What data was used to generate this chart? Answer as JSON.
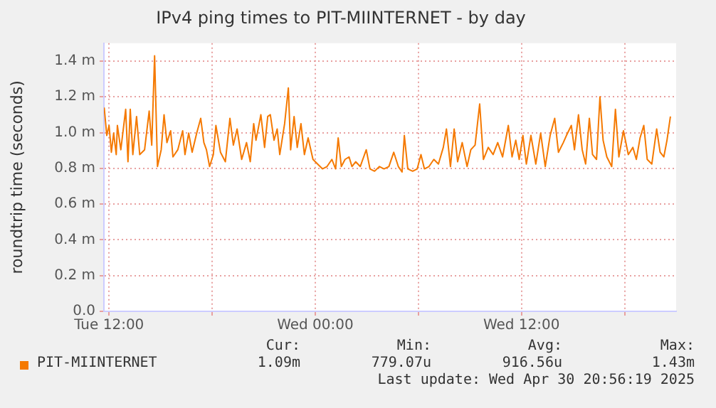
{
  "chart_data": {
    "type": "line",
    "title": "IPv4 ping times to PIT-MIINTERNET - by day",
    "ylabel": "roundtrip time (seconds)",
    "x": [
      "2025-04-29T11:43",
      "2025-04-29T11:52",
      "2025-04-29T12:00",
      "2025-04-29T12:08",
      "2025-04-29T12:16",
      "2025-04-29T12:25",
      "2025-04-29T12:29",
      "2025-04-29T12:41",
      "2025-04-29T12:58",
      "2025-04-29T13:06",
      "2025-04-29T13:14",
      "2025-04-29T13:23",
      "2025-04-29T13:36",
      "2025-04-29T13:47",
      "2025-04-29T14:04",
      "2025-04-29T14:20",
      "2025-04-29T14:29",
      "2025-04-29T14:39",
      "2025-04-29T14:49",
      "2025-04-29T15:02",
      "2025-04-29T15:12",
      "2025-04-29T15:22",
      "2025-04-29T15:35",
      "2025-04-29T15:43",
      "2025-04-29T16:00",
      "2025-04-29T16:17",
      "2025-04-29T16:25",
      "2025-04-29T16:38",
      "2025-04-29T16:50",
      "2025-04-29T17:06",
      "2025-04-29T17:20",
      "2025-04-29T17:31",
      "2025-04-29T17:40",
      "2025-04-29T17:51",
      "2025-04-29T18:04",
      "2025-04-29T18:13",
      "2025-04-29T18:29",
      "2025-04-29T18:46",
      "2025-04-29T19:02",
      "2025-04-29T19:14",
      "2025-04-29T19:27",
      "2025-04-29T19:43",
      "2025-04-29T20:00",
      "2025-04-29T20:13",
      "2025-04-29T20:25",
      "2025-04-29T20:33",
      "2025-04-29T20:50",
      "2025-04-29T21:03",
      "2025-04-29T21:14",
      "2025-04-29T21:23",
      "2025-04-29T21:36",
      "2025-04-29T21:47",
      "2025-04-29T21:56",
      "2025-04-29T22:13",
      "2025-04-29T22:26",
      "2025-04-29T22:34",
      "2025-04-29T22:46",
      "2025-04-29T22:57",
      "2025-04-29T23:10",
      "2025-04-29T23:22",
      "2025-04-29T23:35",
      "2025-04-29T23:52",
      "2025-04-30T00:08",
      "2025-04-30T00:25",
      "2025-04-30T00:41",
      "2025-04-30T00:58",
      "2025-04-30T01:11",
      "2025-04-30T01:20",
      "2025-04-30T01:31",
      "2025-04-30T01:44",
      "2025-04-30T01:58",
      "2025-04-30T02:08",
      "2025-04-30T02:21",
      "2025-04-30T02:37",
      "2025-04-30T02:58",
      "2025-04-30T03:11",
      "2025-04-30T03:27",
      "2025-04-30T03:44",
      "2025-04-30T04:00",
      "2025-04-30T04:17",
      "2025-04-30T04:34",
      "2025-04-30T04:50",
      "2025-04-30T05:03",
      "2025-04-30T05:11",
      "2025-04-30T05:23",
      "2025-04-30T05:40",
      "2025-04-30T05:56",
      "2025-04-30T06:09",
      "2025-04-30T06:21",
      "2025-04-30T06:37",
      "2025-04-30T06:54",
      "2025-04-30T07:10",
      "2025-04-30T07:27",
      "2025-04-30T07:38",
      "2025-04-30T07:52",
      "2025-04-30T08:05",
      "2025-04-30T08:17",
      "2025-04-30T08:33",
      "2025-04-30T08:50",
      "2025-04-30T09:03",
      "2025-04-30T09:18",
      "2025-04-30T09:34",
      "2025-04-30T09:47",
      "2025-04-30T10:04",
      "2025-04-30T10:21",
      "2025-04-30T10:37",
      "2025-04-30T10:54",
      "2025-04-30T11:14",
      "2025-04-30T11:27",
      "2025-04-30T11:40",
      "2025-04-30T11:52",
      "2025-04-30T12:05",
      "2025-04-30T12:17",
      "2025-04-30T12:33",
      "2025-04-30T12:50",
      "2025-04-30T13:07",
      "2025-04-30T13:23",
      "2025-04-30T13:40",
      "2025-04-30T13:56",
      "2025-04-30T14:09",
      "2025-04-30T14:26",
      "2025-04-30T14:37",
      "2025-04-30T14:54",
      "2025-04-30T15:05",
      "2025-04-30T15:19",
      "2025-04-30T15:32",
      "2025-04-30T15:44",
      "2025-04-30T15:57",
      "2025-04-30T16:08",
      "2025-04-30T16:22",
      "2025-04-30T16:34",
      "2025-04-30T16:45",
      "2025-04-30T16:58",
      "2025-04-30T17:15",
      "2025-04-30T17:28",
      "2025-04-30T17:40",
      "2025-04-30T17:56",
      "2025-04-30T18:13",
      "2025-04-30T18:29",
      "2025-04-30T18:41",
      "2025-04-30T18:54",
      "2025-04-30T19:07",
      "2025-04-30T19:19",
      "2025-04-30T19:35",
      "2025-04-30T19:52",
      "2025-04-30T20:04",
      "2025-04-30T20:17",
      "2025-04-30T20:28",
      "2025-04-30T20:40"
    ],
    "series": [
      {
        "name": "PIT-MIINTERNET",
        "color": "#f57900",
        "values": [
          1.14,
          0.984,
          1.04,
          0.89,
          0.997,
          0.877,
          1.04,
          0.904,
          1.13,
          0.837,
          1.13,
          0.877,
          1.09,
          0.877,
          0.904,
          1.12,
          0.93,
          1.43,
          0.81,
          0.904,
          1.1,
          0.944,
          1.01,
          0.864,
          0.904,
          1.01,
          0.877,
          0.997,
          0.89,
          0.997,
          1.08,
          0.944,
          0.904,
          0.81,
          0.877,
          1.04,
          0.89,
          0.837,
          1.08,
          0.93,
          1.02,
          0.85,
          0.944,
          0.837,
          1.05,
          0.957,
          1.1,
          0.917,
          1.09,
          1.1,
          0.957,
          1.02,
          0.877,
          1.05,
          1.25,
          0.904,
          1.09,
          0.917,
          1.05,
          0.877,
          0.97,
          0.85,
          0.824,
          0.797,
          0.81,
          0.85,
          0.797,
          0.97,
          0.81,
          0.85,
          0.864,
          0.81,
          0.837,
          0.81,
          0.904,
          0.797,
          0.784,
          0.81,
          0.797,
          0.81,
          0.89,
          0.81,
          0.78,
          0.984,
          0.797,
          0.784,
          0.797,
          0.877,
          0.797,
          0.81,
          0.85,
          0.824,
          0.917,
          1.02,
          0.81,
          1.02,
          0.837,
          0.944,
          0.81,
          0.904,
          0.93,
          1.16,
          0.85,
          0.917,
          0.877,
          0.944,
          0.864,
          1.04,
          0.864,
          0.957,
          0.85,
          0.984,
          0.824,
          0.984,
          0.824,
          0.997,
          0.81,
          0.984,
          1.08,
          0.89,
          0.944,
          0.984,
          1.04,
          0.904,
          1.1,
          0.904,
          0.824,
          1.08,
          0.877,
          0.85,
          1.2,
          0.957,
          0.864,
          0.81,
          1.13,
          0.864,
          1.01,
          0.877,
          0.917,
          0.85,
          0.97,
          1.04,
          0.85,
          0.824,
          1.02,
          0.89,
          0.864,
          0.957,
          1.09
        ]
      }
    ],
    "xlim": [
      "2025-04-29T11:42",
      "2025-04-30T21:00"
    ],
    "xticks": [
      {
        "value": "2025-04-29T12:00",
        "label": "Tue 12:00"
      },
      {
        "value": "2025-04-29T18:00",
        "label": null
      },
      {
        "value": "2025-04-30T00:00",
        "label": "Wed 00:00"
      },
      {
        "value": "2025-04-30T06:00",
        "label": null
      },
      {
        "value": "2025-04-30T12:00",
        "label": "Wed 12:00"
      },
      {
        "value": "2025-04-30T18:00",
        "label": null
      }
    ],
    "ylim": [
      0,
      1.5
    ],
    "yticks": [
      {
        "value": 0,
        "label": "0.0"
      },
      {
        "value": 0.2,
        "label": "0.2 m"
      },
      {
        "value": 0.4,
        "label": "0.4 m"
      },
      {
        "value": 0.6,
        "label": "0.6 m"
      },
      {
        "value": 0.8,
        "label": "0.8 m"
      },
      {
        "value": 1,
        "label": "1.0 m"
      },
      {
        "value": 1.2,
        "label": "1.2 m"
      },
      {
        "value": 1.4,
        "label": "1.4 m"
      }
    ],
    "grid": true,
    "legend": "bottom",
    "marker": "none",
    "line_style": "solid",
    "annotations": [
      "Cur:",
      "1.09m",
      "Min:",
      "779.07u",
      "Avg:",
      "916.56u",
      "Max:",
      "1.43m",
      "Last update: Wed Apr 30 20:56:19 2025"
    ]
  }
}
